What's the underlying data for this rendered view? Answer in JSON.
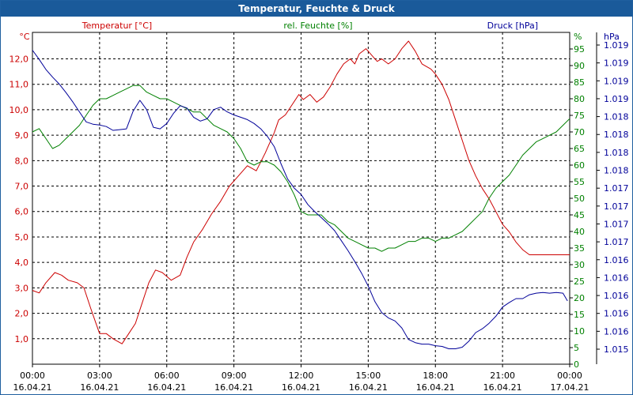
{
  "chart_data": {
    "type": "line",
    "title": "Temperatur, Feuchte & Druck",
    "x_tick_labels": [
      {
        "time": "00:00",
        "date": "16.04.21"
      },
      {
        "time": "03:00",
        "date": "16.04.21"
      },
      {
        "time": "06:00",
        "date": "16.04.21"
      },
      {
        "time": "09:00",
        "date": "16.04.21"
      },
      {
        "time": "12:00",
        "date": "16.04.21"
      },
      {
        "time": "15:00",
        "date": "16.04.21"
      },
      {
        "time": "18:00",
        "date": "16.04.21"
      },
      {
        "time": "21:00",
        "date": "16.04.21"
      },
      {
        "time": "00:00",
        "date": "17.04.21"
      }
    ],
    "x_range_hours": [
      0,
      24
    ],
    "grid": true,
    "axes": {
      "left": {
        "unit": "°C",
        "ylim": [
          0,
          13.04
        ],
        "ticks": [
          1.0,
          2.0,
          3.0,
          4.0,
          5.0,
          6.0,
          7.0,
          8.0,
          9.0,
          10.0,
          11.0,
          12.0
        ],
        "tick_labels": [
          "1,0",
          "2,0",
          "3,0",
          "4,0",
          "5,0",
          "6,0",
          "7,0",
          "8,0",
          "9,0",
          "10,0",
          "11,0",
          "12,0"
        ],
        "color": "#cc0000"
      },
      "mid": {
        "unit": "%",
        "ylim": [
          0,
          100
        ],
        "ticks": [
          0,
          5,
          10,
          15,
          20,
          25,
          30,
          35,
          40,
          45,
          50,
          55,
          60,
          65,
          70,
          75,
          80,
          85,
          90,
          95
        ],
        "tick_labels": [
          "0",
          "5",
          "10",
          "15",
          "20",
          "25",
          "30",
          "35",
          "40",
          "45",
          "50",
          "55",
          "60",
          "65",
          "70",
          "75",
          "80",
          "85",
          "90",
          "95"
        ],
        "color": "#008000"
      },
      "right": {
        "unit": "hPa",
        "ylim": [
          1015.0,
          1019.3
        ],
        "tick_labels": [
          "1.015",
          "1.016",
          "1.016",
          "1.016",
          "1.016",
          "1.016",
          "1.017",
          "1.017",
          "1.017",
          "1.017",
          "1.018",
          "1.018",
          "1.018",
          "1.018",
          "1.019",
          "1.019",
          "1.019",
          "1.019"
        ],
        "color": "#000099"
      }
    },
    "series": [
      {
        "name": "Temperatur [°C]",
        "axis": "left",
        "color": "#cc0000",
        "x": [
          0,
          0.3,
          0.6,
          1.0,
          1.3,
          1.6,
          2.0,
          2.3,
          2.6,
          2.8,
          3.0,
          3.3,
          3.6,
          4.0,
          4.3,
          4.6,
          4.9,
          5.2,
          5.5,
          5.8,
          6.2,
          6.6,
          6.9,
          7.2,
          7.6,
          8.0,
          8.4,
          8.8,
          9.2,
          9.6,
          10.0,
          10.4,
          10.8,
          11.0,
          11.3,
          11.6,
          11.9,
          12.1,
          12.4,
          12.7,
          13.0,
          13.3,
          13.6,
          13.9,
          14.2,
          14.4,
          14.6,
          14.9,
          15.2,
          15.4,
          15.6,
          15.9,
          16.2,
          16.5,
          16.8,
          17.1,
          17.4,
          17.6,
          17.8,
          18.0,
          18.3,
          18.6,
          18.9,
          19.2,
          19.5,
          19.8,
          20.1,
          20.4,
          20.7,
          21.0,
          21.3,
          21.6,
          21.9,
          22.2,
          22.5,
          22.8,
          23.1,
          23.4,
          23.7,
          24.0
        ],
        "values": [
          2.9,
          2.8,
          3.2,
          3.6,
          3.5,
          3.3,
          3.2,
          3.0,
          2.2,
          1.7,
          1.2,
          1.2,
          1.0,
          0.8,
          1.2,
          1.6,
          2.4,
          3.2,
          3.7,
          3.6,
          3.3,
          3.5,
          4.2,
          4.8,
          5.3,
          5.9,
          6.4,
          7.0,
          7.4,
          7.8,
          7.6,
          8.3,
          9.1,
          9.6,
          9.8,
          10.2,
          10.6,
          10.4,
          10.6,
          10.3,
          10.5,
          10.9,
          11.4,
          11.8,
          12.0,
          11.8,
          12.2,
          12.4,
          12.1,
          11.9,
          12.0,
          11.8,
          12.0,
          12.4,
          12.7,
          12.3,
          11.8,
          11.7,
          11.6,
          11.4,
          11.0,
          10.4,
          9.6,
          8.8,
          8.0,
          7.4,
          6.9,
          6.5,
          6.0,
          5.5,
          5.2,
          4.8,
          4.5,
          4.3,
          4.3,
          4.3,
          4.3,
          4.3,
          4.3,
          4.3
        ]
      },
      {
        "name": "rel. Feuchte [%]",
        "axis": "mid",
        "color": "#008000",
        "x": [
          0,
          0.3,
          0.6,
          0.9,
          1.2,
          1.5,
          1.8,
          2.1,
          2.4,
          2.7,
          3.0,
          3.3,
          3.6,
          3.9,
          4.2,
          4.5,
          4.8,
          5.1,
          5.4,
          5.7,
          6.0,
          6.3,
          6.6,
          6.9,
          7.2,
          7.5,
          7.8,
          8.1,
          8.4,
          8.7,
          9.0,
          9.3,
          9.6,
          9.9,
          10.2,
          10.5,
          10.8,
          11.1,
          11.4,
          11.7,
          12.0,
          12.3,
          12.6,
          12.9,
          13.2,
          13.5,
          13.8,
          14.1,
          14.4,
          14.7,
          15.0,
          15.3,
          15.6,
          15.9,
          16.2,
          16.5,
          16.8,
          17.1,
          17.4,
          17.7,
          18.0,
          18.3,
          18.6,
          18.9,
          19.2,
          19.5,
          19.8,
          20.1,
          20.4,
          20.7,
          21.0,
          21.3,
          21.6,
          21.9,
          22.2,
          22.5,
          22.8,
          23.1,
          23.4,
          23.7,
          24.0
        ],
        "values": [
          70,
          71,
          68,
          65,
          66,
          68,
          70,
          72,
          75,
          78,
          80,
          80,
          81,
          82,
          83,
          84,
          84,
          82,
          81,
          80,
          80,
          79,
          78,
          77,
          76,
          76,
          74,
          72,
          71,
          70,
          68,
          65,
          61,
          60,
          61,
          61,
          60,
          58,
          55,
          51,
          46,
          45,
          45,
          45,
          43,
          42,
          40,
          38,
          37,
          36,
          35,
          35,
          34,
          35,
          35,
          36,
          37,
          37,
          38,
          38,
          37,
          38,
          38,
          39,
          40,
          42,
          44,
          46,
          50,
          53,
          55,
          57,
          60,
          63,
          65,
          67,
          68,
          69,
          70,
          72,
          74
        ]
      },
      {
        "name": "Druck [hPa]",
        "axis": "right",
        "color": "#000099",
        "x": [
          0,
          0.3,
          0.6,
          0.9,
          1.2,
          1.5,
          1.8,
          2.1,
          2.4,
          2.7,
          3.0,
          3.3,
          3.6,
          3.9,
          4.2,
          4.5,
          4.8,
          5.1,
          5.4,
          5.7,
          6.0,
          6.3,
          6.6,
          6.9,
          7.2,
          7.5,
          7.8,
          8.1,
          8.4,
          8.7,
          9.0,
          9.3,
          9.6,
          9.9,
          10.2,
          10.5,
          10.8,
          11.1,
          11.4,
          11.7,
          12.0,
          12.3,
          12.6,
          12.9,
          13.2,
          13.5,
          13.8,
          14.1,
          14.4,
          14.7,
          15.0,
          15.3,
          15.6,
          15.9,
          16.2,
          16.5,
          16.8,
          17.1,
          17.4,
          17.7,
          18.0,
          18.3,
          18.6,
          18.9,
          19.2,
          19.5,
          19.8,
          20.1,
          20.4,
          20.7,
          21.0,
          21.3,
          21.6,
          21.9,
          22.2,
          22.5,
          22.8,
          23.1,
          23.4,
          23.7,
          23.9
        ],
        "values": [
          1019.07,
          1018.95,
          1018.82,
          1018.72,
          1018.63,
          1018.52,
          1018.4,
          1018.27,
          1018.14,
          1018.11,
          1018.1,
          1018.08,
          1018.03,
          1018.04,
          1018.05,
          1018.28,
          1018.42,
          1018.3,
          1018.07,
          1018.05,
          1018.12,
          1018.25,
          1018.35,
          1018.32,
          1018.2,
          1018.15,
          1018.18,
          1018.3,
          1018.33,
          1018.27,
          1018.23,
          1018.2,
          1018.17,
          1018.12,
          1018.05,
          1017.95,
          1017.82,
          1017.6,
          1017.4,
          1017.28,
          1017.2,
          1017.07,
          1016.98,
          1016.9,
          1016.82,
          1016.73,
          1016.6,
          1016.47,
          1016.33,
          1016.18,
          1016.01,
          1015.81,
          1015.67,
          1015.6,
          1015.56,
          1015.47,
          1015.32,
          1015.28,
          1015.26,
          1015.26,
          1015.24,
          1015.23,
          1015.2,
          1015.2,
          1015.22,
          1015.3,
          1015.41,
          1015.46,
          1015.53,
          1015.62,
          1015.74,
          1015.8,
          1015.85,
          1015.85,
          1015.9,
          1015.92,
          1015.93,
          1015.92,
          1015.93,
          1015.92,
          1015.82
        ]
      }
    ]
  }
}
